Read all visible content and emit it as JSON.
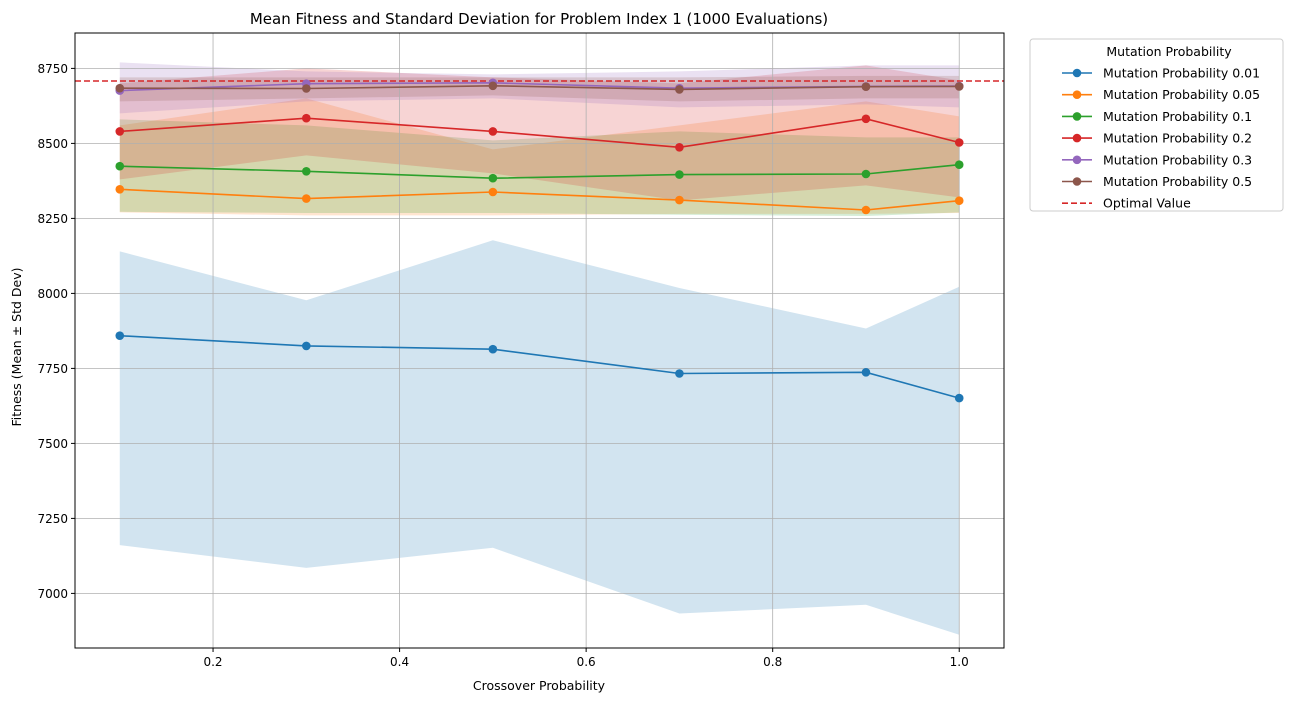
{
  "chart_data": {
    "type": "line",
    "title": "Mean Fitness and Standard Deviation for Problem Index 1 (1000 Evaluations)",
    "xlabel": "Crossover Probability",
    "ylabel": "Fitness (Mean ± Std Dev)",
    "xlim": [
      0.052,
      1.048
    ],
    "ylim": [
      6818,
      8868
    ],
    "xticks": [
      0.2,
      0.4,
      0.6,
      0.8,
      1.0
    ],
    "xtick_labels": [
      "0.2",
      "0.4",
      "0.6",
      "0.8",
      "1.0"
    ],
    "yticks": [
      7000,
      7250,
      7500,
      7750,
      8000,
      8250,
      8500,
      8750
    ],
    "ytick_labels": [
      "7000",
      "7250",
      "7500",
      "7750",
      "8000",
      "8250",
      "8500",
      "8750"
    ],
    "grid": true,
    "legend_position": "outside-top-right",
    "legend_title": "Mutation Probability",
    "x": [
      0.1,
      0.3,
      0.5,
      0.7,
      0.9,
      1.0
    ],
    "series": [
      {
        "name": "Mutation Probability 0.01",
        "color": "#1f77b4",
        "mean": [
          7859,
          7825,
          7814,
          7733,
          7737,
          7651
        ],
        "lower": [
          7161,
          7085,
          7152,
          6933,
          6962,
          6862
        ],
        "upper": [
          8140,
          7977,
          8177,
          8018,
          7883,
          8022
        ]
      },
      {
        "name": "Mutation Probability 0.05",
        "color": "#ff7f0e",
        "mean": [
          8347,
          8316,
          8338,
          8311,
          8278,
          8309
        ],
        "lower": [
          8270,
          8260,
          8260,
          8265,
          8265,
          8268
        ],
        "upper": [
          8560,
          8650,
          8480,
          8560,
          8640,
          8590
        ]
      },
      {
        "name": "Mutation Probability 0.1",
        "color": "#2ca02c",
        "mean": [
          8424,
          8407,
          8384,
          8396,
          8398,
          8429
        ],
        "lower": [
          8272,
          8268,
          8268,
          8262,
          8258,
          8270
        ],
        "upper": [
          8580,
          8560,
          8510,
          8540,
          8520,
          8520
        ]
      },
      {
        "name": "Mutation Probability 0.2",
        "color": "#d62728",
        "mean": [
          8540,
          8584,
          8540,
          8487,
          8582,
          8503
        ],
        "lower": [
          8380,
          8460,
          8400,
          8310,
          8360,
          8320
        ],
        "upper": [
          8700,
          8750,
          8720,
          8700,
          8760,
          8710
        ]
      },
      {
        "name": "Mutation Probability 0.3",
        "color": "#9467bd",
        "mean": [
          8676,
          8699,
          8702,
          8684,
          8690,
          8691
        ],
        "lower": [
          8600,
          8640,
          8650,
          8620,
          8630,
          8620
        ],
        "upper": [
          8770,
          8740,
          8730,
          8740,
          8760,
          8760
        ]
      },
      {
        "name": "Mutation Probability 0.5",
        "color": "#8c564b",
        "mean": [
          8684,
          8683,
          8692,
          8680,
          8689,
          8690
        ],
        "lower": [
          8640,
          8650,
          8660,
          8640,
          8650,
          8650
        ],
        "upper": [
          8720,
          8720,
          8720,
          8720,
          8725,
          8725
        ]
      }
    ],
    "reference_line": {
      "name": "Optimal Value",
      "y": 8708,
      "color": "#d62728"
    }
  }
}
